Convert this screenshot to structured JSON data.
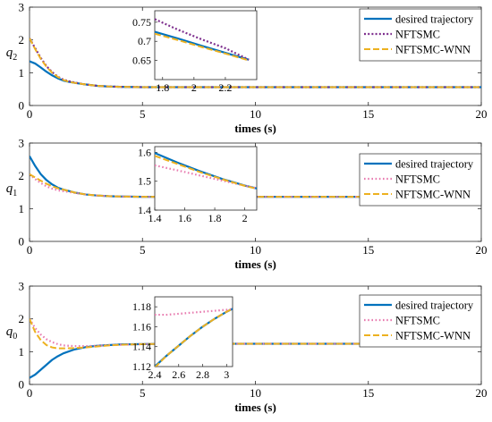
{
  "colors": {
    "desired": "#0072BD",
    "nftsmc_top": "#7E2F8E",
    "nftsmc": "#E87CB0",
    "wnn": "#EDB120",
    "axis": "#262626"
  },
  "chart_data": [
    {
      "type": "line",
      "ylabel": "q2",
      "xlabel": "times (s)",
      "xlim": [
        0,
        20
      ],
      "ylim": [
        0,
        3
      ],
      "xticks": [
        "0",
        "5",
        "10",
        "15",
        "20"
      ],
      "yticks": [
        "0",
        "1",
        "2",
        "3"
      ],
      "legend": {
        "placement": "top-right",
        "entries": [
          "desired trajectory",
          "NFTSMC",
          "NFTSMC-WNN"
        ]
      },
      "series": [
        {
          "name": "desired trajectory",
          "style": "solid",
          "x": [
            0,
            0.25,
            0.5,
            0.75,
            1,
            1.25,
            1.5,
            1.75,
            2,
            2.5,
            3,
            3.5,
            4,
            5,
            6,
            8,
            10,
            12,
            14,
            16,
            18,
            20
          ],
          "y": [
            1.35,
            1.28,
            1.16,
            1.03,
            0.92,
            0.83,
            0.76,
            0.72,
            0.69,
            0.64,
            0.6,
            0.58,
            0.57,
            0.56,
            0.56,
            0.56,
            0.56,
            0.56,
            0.56,
            0.56,
            0.56,
            0.56
          ]
        },
        {
          "name": "NFTSMC",
          "style": "dotted",
          "x": [
            0,
            0.25,
            0.5,
            0.75,
            1,
            1.25,
            1.5,
            1.75,
            2,
            2.5,
            3,
            3.5,
            4,
            5,
            6,
            8,
            10,
            12,
            14,
            16,
            18,
            20
          ],
          "y": [
            2.05,
            1.75,
            1.45,
            1.2,
            1.02,
            0.88,
            0.79,
            0.74,
            0.7,
            0.64,
            0.6,
            0.58,
            0.57,
            0.56,
            0.56,
            0.56,
            0.56,
            0.56,
            0.56,
            0.56,
            0.56,
            0.56
          ]
        },
        {
          "name": "NFTSMC-WNN",
          "style": "dashed",
          "x": [
            0,
            0.25,
            0.5,
            0.75,
            1,
            1.25,
            1.5,
            1.75,
            2,
            2.5,
            3,
            3.5,
            4,
            5,
            6,
            8,
            10,
            12,
            14,
            16,
            18,
            20
          ],
          "y": [
            2.05,
            1.72,
            1.42,
            1.18,
            1.0,
            0.87,
            0.78,
            0.72,
            0.69,
            0.64,
            0.6,
            0.58,
            0.57,
            0.56,
            0.56,
            0.56,
            0.56,
            0.56,
            0.56,
            0.56,
            0.56,
            0.56
          ]
        }
      ],
      "inset": {
        "xlim": [
          1.75,
          2.4
        ],
        "ylim": [
          0.6,
          0.78
        ],
        "xticks": [
          "1.8",
          "2",
          "2.2"
        ],
        "yticks": [
          "0.65",
          "0.7",
          "0.75"
        ],
        "series": [
          {
            "name": "desired trajectory",
            "x": [
              1.75,
              1.9,
              2.05,
              2.2,
              2.35
            ],
            "y": [
              0.725,
              0.707,
              0.688,
              0.67,
              0.652
            ]
          },
          {
            "name": "NFTSMC",
            "x": [
              1.75,
              1.9,
              2.05,
              2.2,
              2.35
            ],
            "y": [
              0.758,
              0.73,
              0.705,
              0.682,
              0.652
            ]
          },
          {
            "name": "NFTSMC-WNN",
            "x": [
              1.75,
              1.9,
              2.05,
              2.2,
              2.35
            ],
            "y": [
              0.72,
              0.703,
              0.685,
              0.668,
              0.65
            ]
          }
        ]
      }
    },
    {
      "type": "line",
      "ylabel": "q1",
      "xlabel": "times (s)",
      "xlim": [
        0,
        20
      ],
      "ylim": [
        0,
        3
      ],
      "xticks": [
        "0",
        "5",
        "10",
        "15",
        "20"
      ],
      "yticks": [
        "0",
        "1",
        "2",
        "3"
      ],
      "legend": {
        "placement": "top-right",
        "entries": [
          "desired trajectory",
          "NFTSMC",
          "NFTSMC-WNN"
        ]
      },
      "series": [
        {
          "name": "desired trajectory",
          "style": "solid",
          "x": [
            0,
            0.25,
            0.5,
            0.75,
            1,
            1.25,
            1.5,
            2,
            2.5,
            3,
            3.5,
            4,
            5,
            6,
            8,
            10,
            12,
            14,
            16,
            18,
            20
          ],
          "y": [
            2.6,
            2.3,
            2.05,
            1.87,
            1.74,
            1.64,
            1.58,
            1.49,
            1.43,
            1.4,
            1.38,
            1.37,
            1.36,
            1.36,
            1.36,
            1.36,
            1.36,
            1.36,
            1.36,
            1.36,
            1.36
          ]
        },
        {
          "name": "NFTSMC",
          "style": "dotted",
          "x": [
            0,
            0.25,
            0.5,
            0.75,
            1,
            1.25,
            1.5,
            2,
            2.5,
            3,
            3.5,
            4,
            5,
            6,
            8,
            10,
            12,
            14,
            16,
            18,
            20
          ],
          "y": [
            2.05,
            1.9,
            1.78,
            1.68,
            1.61,
            1.56,
            1.53,
            1.48,
            1.43,
            1.4,
            1.38,
            1.37,
            1.36,
            1.36,
            1.36,
            1.36,
            1.36,
            1.36,
            1.36,
            1.36,
            1.36
          ]
        },
        {
          "name": "NFTSMC-WNN",
          "style": "dashed",
          "x": [
            0,
            0.25,
            0.5,
            0.75,
            1,
            1.25,
            1.5,
            2,
            2.5,
            3,
            3.5,
            4,
            5,
            6,
            8,
            10,
            12,
            14,
            16,
            18,
            20
          ],
          "y": [
            2.05,
            1.95,
            1.85,
            1.76,
            1.68,
            1.62,
            1.58,
            1.49,
            1.43,
            1.4,
            1.38,
            1.37,
            1.36,
            1.36,
            1.36,
            1.36,
            1.36,
            1.36,
            1.36,
            1.36,
            1.36
          ]
        }
      ],
      "inset": {
        "xlim": [
          1.4,
          2.08
        ],
        "ylim": [
          1.4,
          1.62
        ],
        "xticks": [
          "1.4",
          "1.6",
          "1.8",
          "2"
        ],
        "yticks": [
          "1.4",
          "1.5",
          "1.6"
        ],
        "series": [
          {
            "name": "desired trajectory",
            "x": [
              1.4,
              1.55,
              1.7,
              1.85,
              2.0,
              2.08
            ],
            "y": [
              1.598,
              1.565,
              1.535,
              1.508,
              1.485,
              1.475
            ]
          },
          {
            "name": "NFTSMC",
            "x": [
              1.4,
              1.55,
              1.7,
              1.85,
              2.0,
              2.08
            ],
            "y": [
              1.555,
              1.538,
              1.52,
              1.502,
              1.485,
              1.476
            ]
          },
          {
            "name": "NFTSMC-WNN",
            "x": [
              1.4,
              1.55,
              1.7,
              1.85,
              2.0,
              2.08
            ],
            "y": [
              1.588,
              1.56,
              1.532,
              1.507,
              1.484,
              1.474
            ]
          }
        ]
      }
    },
    {
      "type": "line",
      "ylabel": "q0",
      "xlabel": "times (s)",
      "xlim": [
        0,
        20
      ],
      "ylim": [
        0,
        3
      ],
      "xticks": [
        "0",
        "5",
        "10",
        "15",
        "20"
      ],
      "yticks": [
        "0",
        "1",
        "2",
        "3"
      ],
      "legend": {
        "placement": "top-right",
        "entries": [
          "desired trajectory",
          "NFTSMC",
          "NFTSMC-WNN"
        ]
      },
      "series": [
        {
          "name": "desired trajectory",
          "style": "solid",
          "x": [
            0,
            0.25,
            0.5,
            0.75,
            1,
            1.25,
            1.5,
            2,
            2.5,
            3,
            3.5,
            4,
            5,
            6,
            8,
            10,
            12,
            14,
            16,
            18,
            20
          ],
          "y": [
            0.2,
            0.3,
            0.45,
            0.6,
            0.75,
            0.86,
            0.95,
            1.07,
            1.14,
            1.18,
            1.2,
            1.22,
            1.23,
            1.24,
            1.24,
            1.24,
            1.24,
            1.24,
            1.24,
            1.24,
            1.24
          ]
        },
        {
          "name": "NFTSMC",
          "style": "dotted",
          "x": [
            0,
            0.25,
            0.5,
            0.75,
            1,
            1.25,
            1.5,
            2,
            2.5,
            3,
            3.5,
            4,
            5,
            6,
            8,
            10,
            12,
            14,
            16,
            18,
            20
          ],
          "y": [
            2.0,
            1.72,
            1.52,
            1.38,
            1.29,
            1.23,
            1.19,
            1.17,
            1.17,
            1.18,
            1.2,
            1.21,
            1.23,
            1.24,
            1.24,
            1.24,
            1.24,
            1.24,
            1.24,
            1.24,
            1.24
          ]
        },
        {
          "name": "NFTSMC-WNN",
          "style": "dashed",
          "x": [
            0,
            0.25,
            0.5,
            0.75,
            1,
            1.25,
            1.5,
            2,
            2.5,
            3,
            3.5,
            4,
            5,
            6,
            8,
            10,
            12,
            14,
            16,
            18,
            20
          ],
          "y": [
            2.0,
            1.6,
            1.35,
            1.2,
            1.13,
            1.1,
            1.1,
            1.11,
            1.13,
            1.16,
            1.19,
            1.21,
            1.23,
            1.24,
            1.24,
            1.24,
            1.24,
            1.24,
            1.24,
            1.24,
            1.24
          ]
        }
      ],
      "inset": {
        "xlim": [
          2.4,
          3.05
        ],
        "ylim": [
          1.12,
          1.19
        ],
        "xticks": [
          "2.4",
          "2.6",
          "2.8",
          "3"
        ],
        "yticks": [
          "1.12",
          "1.14",
          "1.16",
          "1.18"
        ],
        "series": [
          {
            "name": "desired trajectory",
            "x": [
              2.4,
              2.5,
              2.6,
              2.7,
              2.8,
              2.9,
              3.0,
              3.05
            ],
            "y": [
              1.12,
              1.131,
              1.141,
              1.151,
              1.16,
              1.168,
              1.175,
              1.178
            ]
          },
          {
            "name": "NFTSMC",
            "x": [
              2.4,
              2.5,
              2.6,
              2.7,
              2.8,
              2.9,
              3.0,
              3.05
            ],
            "y": [
              1.172,
              1.172,
              1.173,
              1.174,
              1.175,
              1.176,
              1.177,
              1.178
            ]
          },
          {
            "name": "NFTSMC-WNN",
            "x": [
              2.4,
              2.5,
              2.6,
              2.7,
              2.8,
              2.9,
              3.0,
              3.05
            ],
            "y": [
              1.119,
              1.131,
              1.141,
              1.151,
              1.16,
              1.168,
              1.175,
              1.178
            ]
          }
        ]
      }
    }
  ]
}
